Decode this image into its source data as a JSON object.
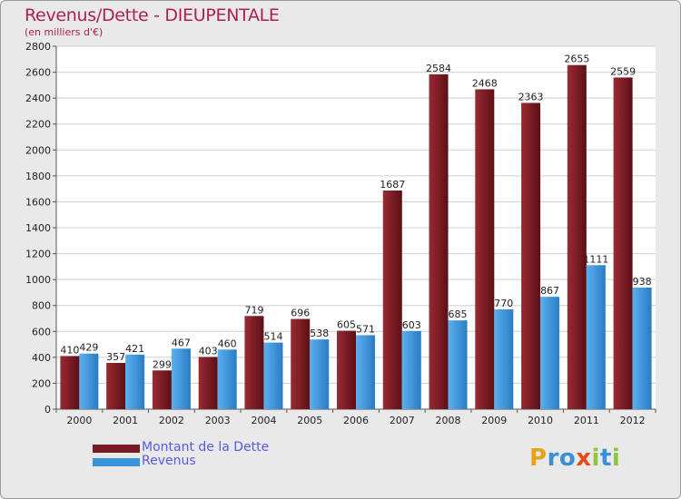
{
  "chart_data": {
    "type": "bar",
    "title": "Revenus/Dette - DIEUPENTALE",
    "subtitle": "(en milliers d'€)",
    "categories": [
      "2000",
      "2001",
      "2002",
      "2003",
      "2004",
      "2005",
      "2006",
      "2007",
      "2008",
      "2009",
      "2010",
      "2011",
      "2012"
    ],
    "series": [
      {
        "name": "Montant de la Dette",
        "color": "#7a1a22",
        "values": [
          410,
          357,
          299,
          403,
          719,
          696,
          605,
          1687,
          2584,
          2468,
          2363,
          2655,
          2559
        ]
      },
      {
        "name": "Revenus",
        "color": "#3a94dc",
        "values": [
          429,
          421,
          467,
          460,
          514,
          538,
          571,
          603,
          685,
          770,
          867,
          1111,
          938
        ]
      }
    ],
    "ylim": [
      0,
      2800
    ],
    "yticks": [
      0,
      200,
      400,
      600,
      800,
      1000,
      1200,
      1400,
      1600,
      1800,
      2000,
      2200,
      2400,
      2600,
      2800
    ],
    "grid": true,
    "legend": "bottom-left"
  },
  "logo": {
    "letters": [
      "P",
      "r",
      "o",
      "x",
      "i",
      "t",
      "i"
    ],
    "colors": [
      "#e8a21a",
      "#3a8fd8",
      "#3a8fd8",
      "#e84a1a",
      "#8cc63e",
      "#3a8fd8",
      "#8cc63e"
    ]
  }
}
